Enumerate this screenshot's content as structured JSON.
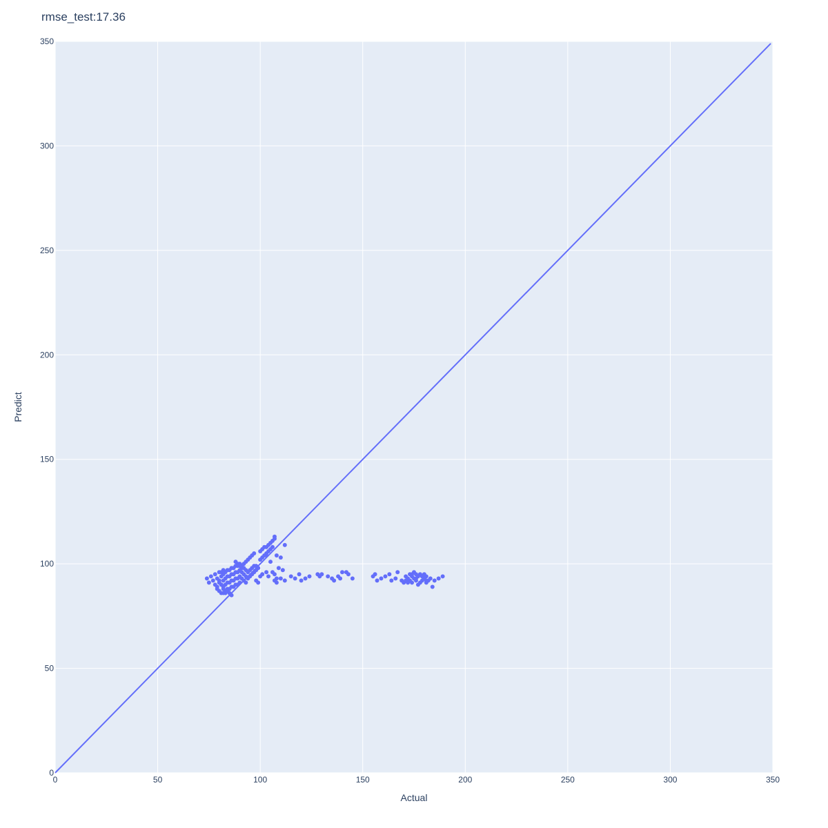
{
  "chart_data": {
    "type": "scatter",
    "title": "rmse_test:17.36",
    "xlabel": "Actual",
    "ylabel": "Predict",
    "xlim": [
      0,
      350
    ],
    "ylim": [
      0,
      350
    ],
    "x_ticks": [
      "0",
      "50",
      "100",
      "150",
      "200",
      "250",
      "300",
      "350"
    ],
    "y_ticks": [
      "0",
      "50",
      "100",
      "150",
      "200",
      "250",
      "300",
      "350"
    ],
    "grid": true,
    "legend": "none",
    "colors": {
      "plot_bg": "#e5ecf6",
      "grid": "#ffffff",
      "marker": "#636efa",
      "line": "#636efa",
      "text": "#2a3f5f"
    },
    "reference_line": {
      "x": [
        0,
        349
      ],
      "y": [
        0,
        349
      ]
    },
    "series": [
      {
        "x": [
          74,
          75,
          76,
          77,
          78,
          78,
          79,
          79,
          80,
          80,
          80,
          81,
          81,
          81,
          82,
          82,
          82,
          82,
          83,
          83,
          83,
          83,
          84,
          84,
          84,
          84,
          85,
          85,
          85,
          85,
          86,
          86,
          86,
          86,
          87,
          87,
          87,
          87,
          88,
          88,
          88,
          88,
          89,
          89,
          89,
          89,
          90,
          90,
          90,
          90,
          91,
          91,
          91,
          92,
          92,
          92,
          93,
          93,
          93,
          94,
          94,
          95,
          95,
          96,
          96,
          97,
          97,
          98,
          98,
          99,
          80,
          81,
          82,
          83,
          79,
          84,
          85,
          86,
          81,
          82,
          88,
          89,
          90,
          91,
          92,
          93,
          94,
          95,
          96,
          97,
          100,
          101,
          102,
          103,
          104,
          105,
          106,
          107,
          100,
          102,
          103,
          104,
          105,
          106,
          107,
          108,
          110,
          112,
          101,
          103,
          105,
          109,
          111,
          106,
          107,
          108,
          104,
          103,
          99,
          98,
          107,
          108,
          100,
          101,
          110,
          112,
          115,
          117,
          119,
          120,
          122,
          124,
          128,
          129,
          130,
          133,
          135,
          136,
          138,
          139,
          140,
          142,
          143,
          145,
          155,
          156,
          157,
          159,
          161,
          163,
          164,
          166,
          167,
          169,
          170,
          171,
          172,
          172,
          173,
          173,
          174,
          174,
          175,
          175,
          176,
          176,
          177,
          177,
          178,
          178,
          179,
          179,
          180,
          180,
          181,
          181,
          182,
          183,
          184,
          185,
          187,
          189,
          171,
          174,
          176,
          179,
          181
        ],
        "y": [
          93,
          91,
          94,
          92,
          95,
          90,
          93,
          89,
          96,
          91,
          87,
          94,
          90,
          86,
          95,
          92,
          89,
          86,
          96,
          93,
          90,
          87,
          97,
          94,
          91,
          88,
          97,
          94,
          91,
          88,
          98,
          95,
          92,
          89,
          98,
          95,
          92,
          89,
          99,
          96,
          93,
          90,
          99,
          96,
          93,
          90,
          100,
          97,
          94,
          91,
          99,
          96,
          93,
          98,
          95,
          92,
          97,
          94,
          91,
          96,
          93,
          97,
          94,
          98,
          95,
          99,
          96,
          99,
          97,
          98,
          92,
          90,
          88,
          86,
          88,
          87,
          86,
          85,
          96,
          97,
          101,
          100,
          99,
          98,
          100,
          101,
          102,
          103,
          104,
          105,
          106,
          107,
          108,
          108,
          109,
          110,
          111,
          112,
          102,
          104,
          105,
          106,
          107,
          108,
          113,
          104,
          103,
          109,
          103,
          104,
          101,
          98,
          97,
          96,
          95,
          93,
          94,
          96,
          91,
          92,
          92,
          91,
          94,
          95,
          93,
          92,
          94,
          93,
          95,
          92,
          93,
          94,
          95,
          94,
          95,
          94,
          93,
          92,
          94,
          93,
          96,
          96,
          95,
          93,
          94,
          95,
          92,
          93,
          94,
          95,
          92,
          93,
          96,
          92,
          91,
          94,
          93,
          91,
          95,
          92,
          94,
          91,
          96,
          93,
          95,
          92,
          94,
          90,
          95,
          91,
          94,
          92,
          95,
          93,
          94,
          91,
          92,
          93,
          89,
          92,
          93,
          94,
          92,
          95,
          93,
          94,
          92
        ]
      }
    ]
  }
}
